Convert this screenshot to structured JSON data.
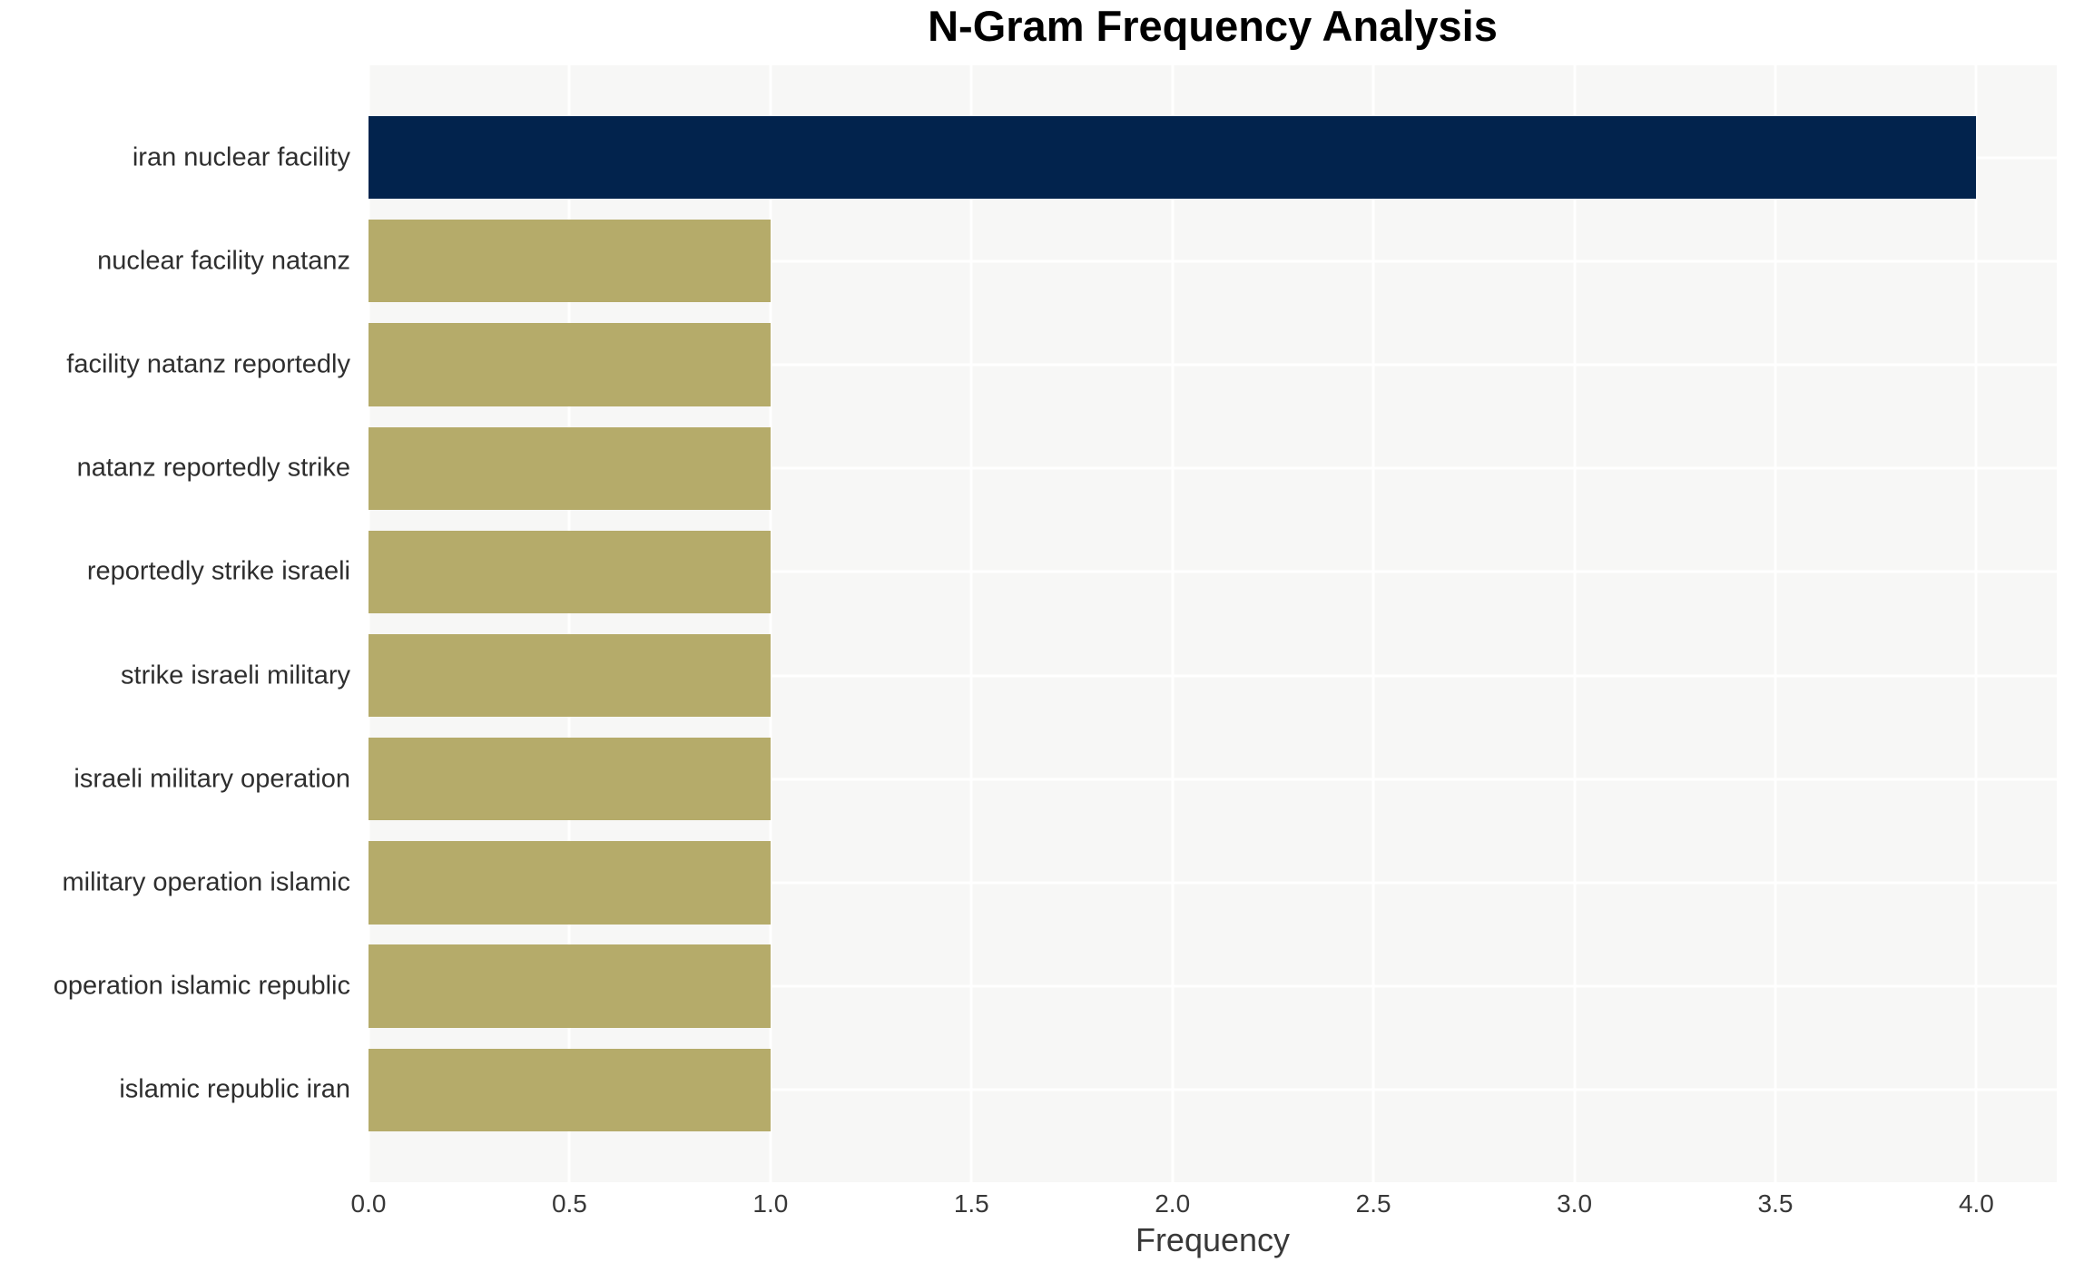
{
  "chart_data": {
    "type": "bar",
    "orientation": "horizontal",
    "title": "N-Gram Frequency Analysis",
    "xlabel": "Frequency",
    "ylabel": "",
    "categories": [
      "iran nuclear facility",
      "nuclear facility natanz",
      "facility natanz reportedly",
      "natanz reportedly strike",
      "reportedly strike israeli",
      "strike israeli military",
      "israeli military operation",
      "military operation islamic",
      "operation islamic republic",
      "islamic republic iran"
    ],
    "values": [
      4,
      1,
      1,
      1,
      1,
      1,
      1,
      1,
      1,
      1
    ],
    "bar_colors": [
      "#02234d",
      "#b5ab6a",
      "#b5ab6a",
      "#b5ab6a",
      "#b5ab6a",
      "#b5ab6a",
      "#b5ab6a",
      "#b5ab6a",
      "#b5ab6a",
      "#b5ab6a"
    ],
    "xtick_labels": [
      "0.0",
      "0.5",
      "1.0",
      "1.5",
      "2.0",
      "2.5",
      "3.0",
      "3.5",
      "4.0"
    ],
    "xtick_values": [
      0,
      0.5,
      1,
      1.5,
      2,
      2.5,
      3,
      3.5,
      4
    ],
    "xlim": [
      0,
      4.2
    ],
    "grid": true,
    "legend": false,
    "colors": {
      "highlight_bar": "#02234d",
      "default_bar": "#b5ab6a",
      "plot_background": "#f7f7f6",
      "gridline": "#ffffff",
      "title_text": "#000000",
      "axis_text": "#383838"
    }
  }
}
